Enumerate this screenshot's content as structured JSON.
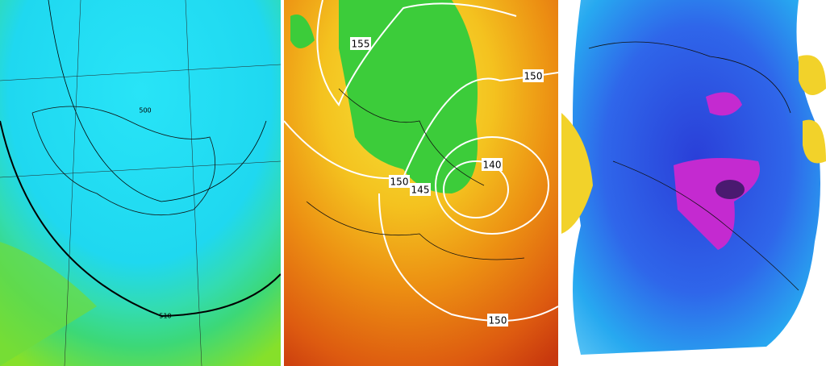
{
  "panels": [
    {
      "labels": [
        "500",
        "510"
      ]
    },
    {
      "labels": [
        "155",
        "150",
        "150",
        "140",
        "145",
        "150"
      ]
    },
    {
      "labels": []
    }
  ]
}
